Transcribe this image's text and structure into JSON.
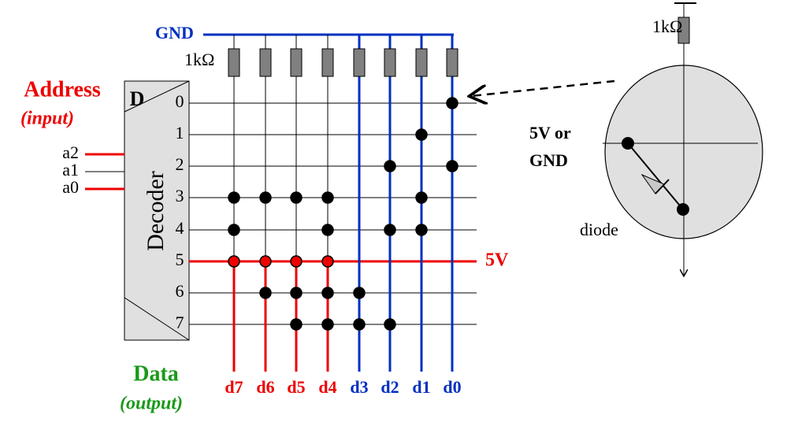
{
  "gnd_label": "GND",
  "resistor_label": "1kΩ",
  "address": {
    "title": "Address",
    "subtitle": "(input)",
    "inputs": [
      "a2",
      "a1",
      "a0"
    ]
  },
  "decoder": {
    "letter": "D",
    "name": "Decoder",
    "rows": [
      "0",
      "1",
      "2",
      "3",
      "4",
      "5",
      "6",
      "7"
    ]
  },
  "active_row_label": "5V",
  "data": {
    "title": "Data",
    "subtitle": "(output)",
    "outputs": [
      "d7",
      "d6",
      "d5",
      "d4",
      "d3",
      "d2",
      "d1",
      "d0"
    ]
  },
  "inset": {
    "resistor_label": "1kΩ",
    "side_label_1": "5V or",
    "side_label_2": "GND",
    "diode_label": "diode"
  }
}
